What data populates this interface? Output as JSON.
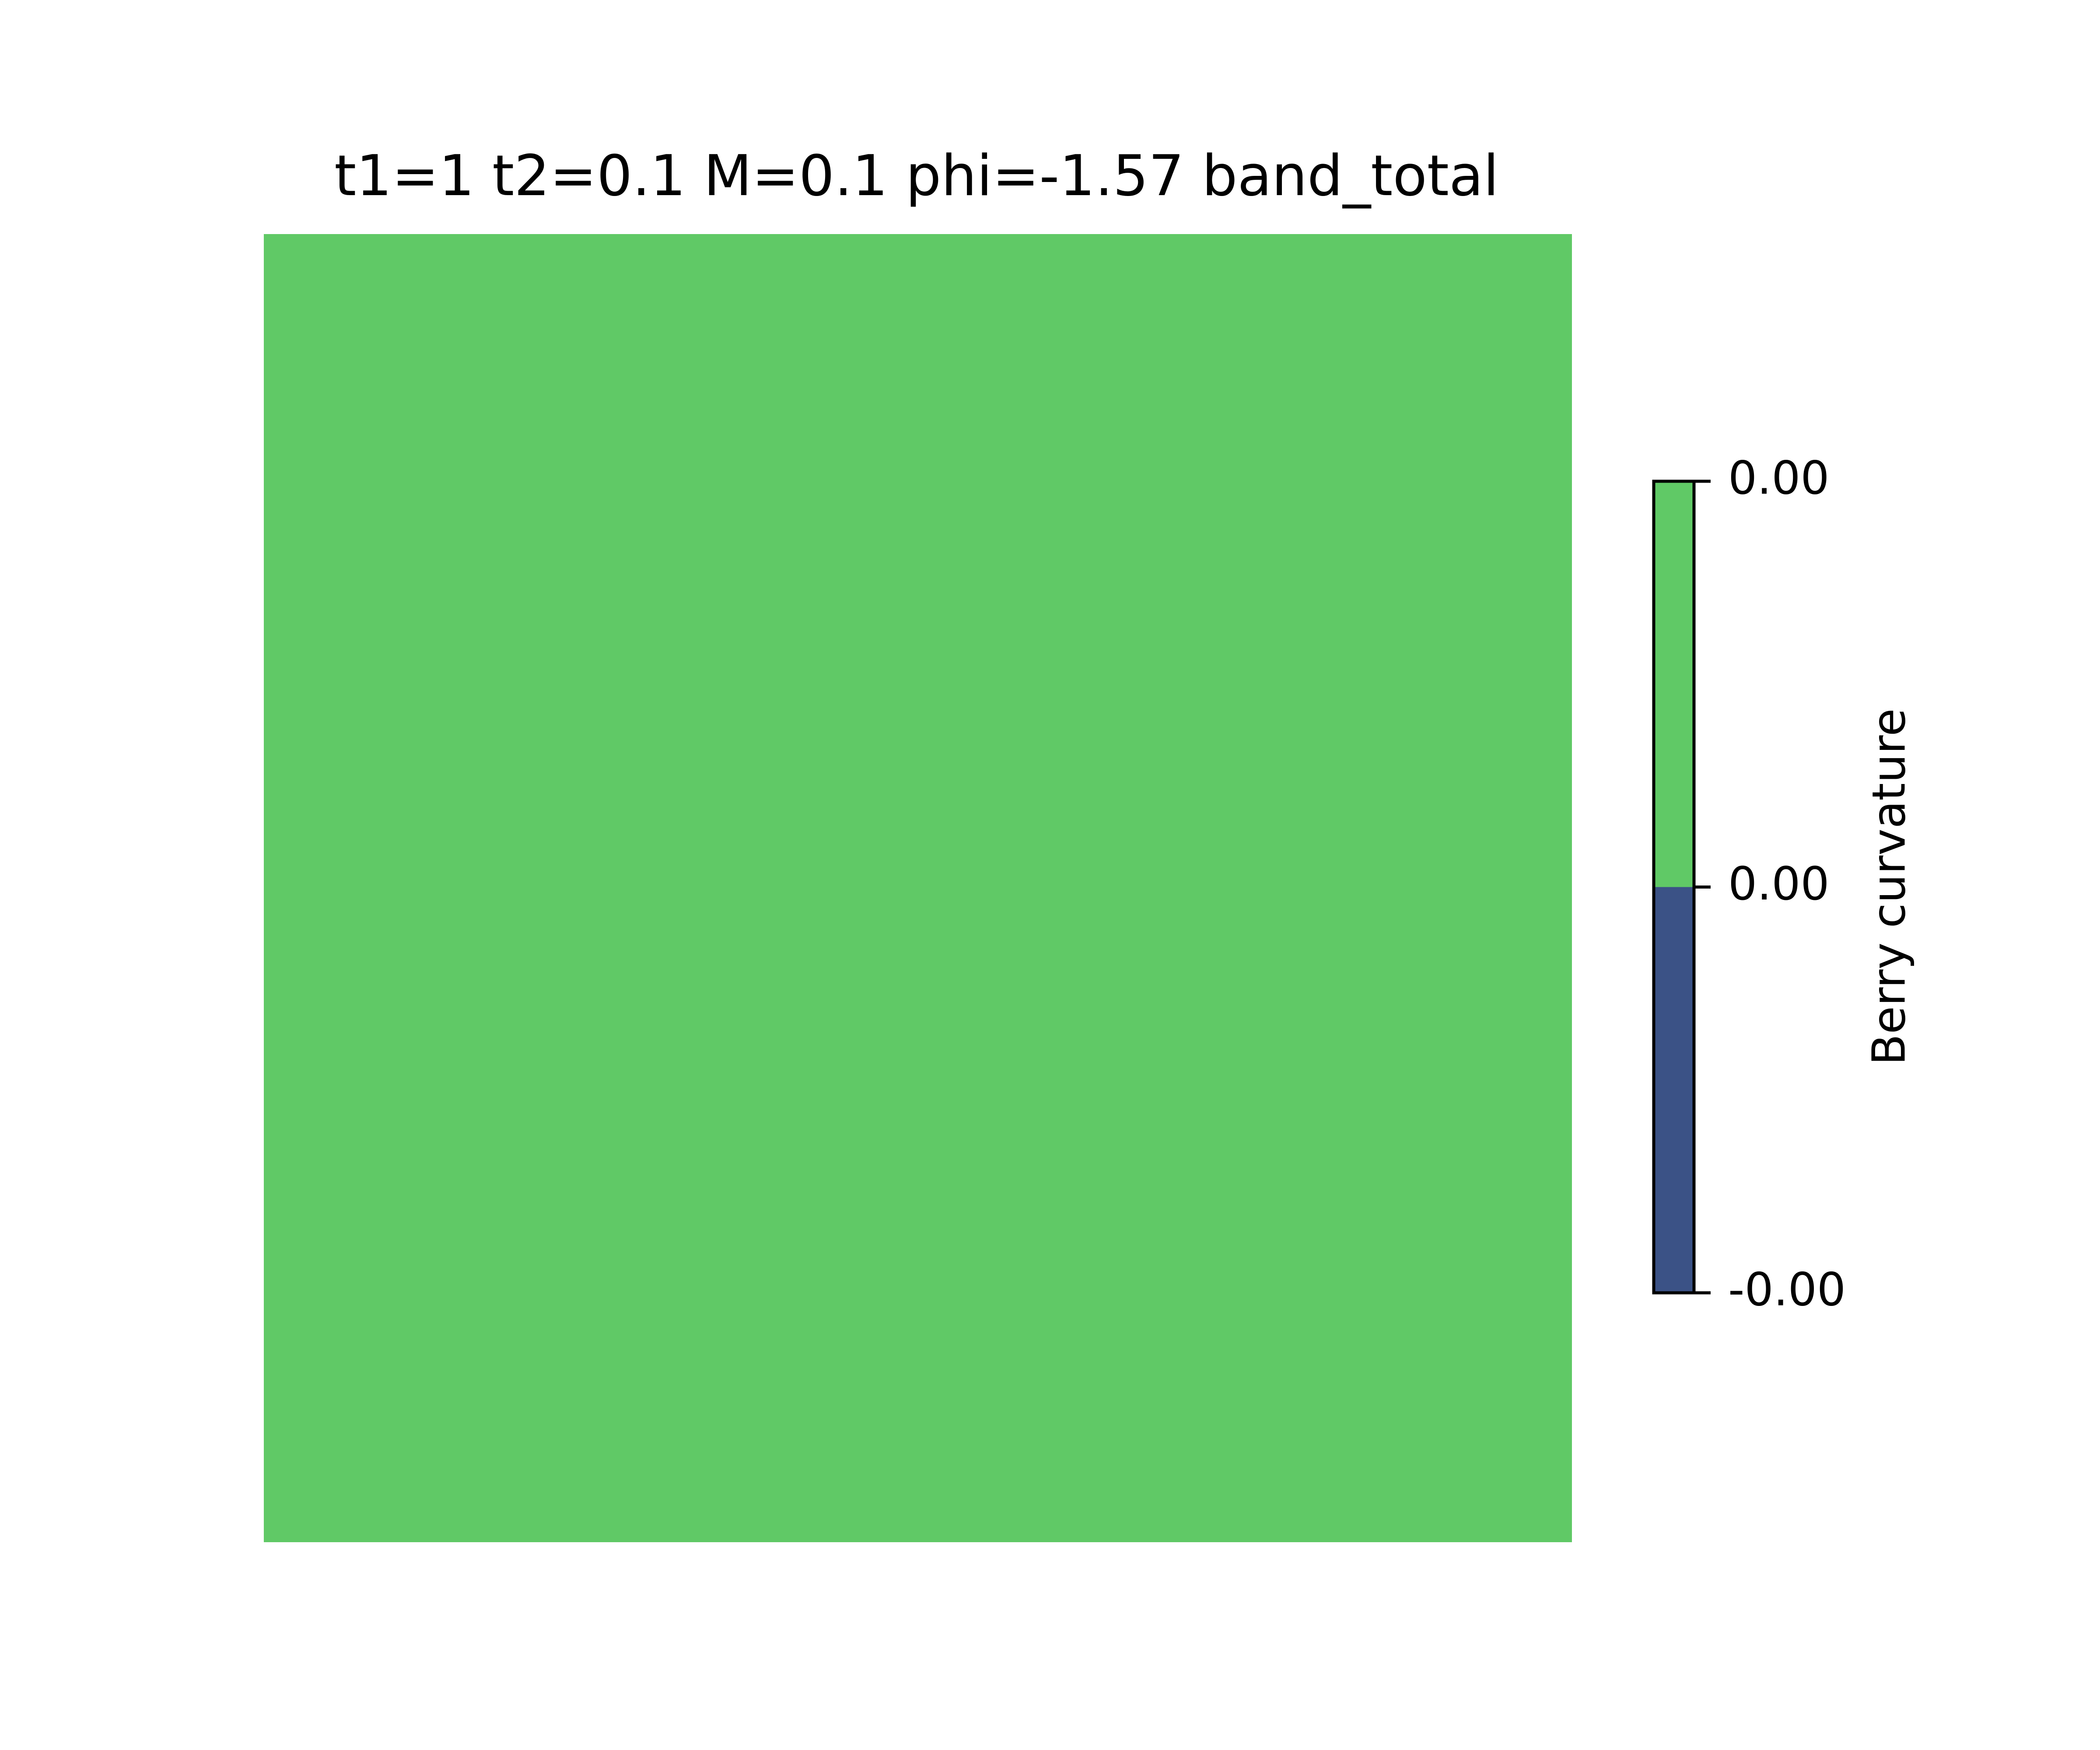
{
  "chart_data": {
    "type": "heatmap",
    "title": "t1=1 t2=0.1 M=0.1 phi=-1.57 band_total",
    "values": [
      [
        0.0
      ]
    ],
    "colors": {
      "heatmap_fill": "#60c966",
      "colorbar_upper": "#60c966",
      "colorbar_lower": "#3b5286",
      "outline": "#000000"
    },
    "colorbar": {
      "label": "Berry curvature",
      "ticks": [
        {
          "value": 2e-07,
          "label": "0.00"
        },
        {
          "value": 0.0,
          "label": "0.00"
        },
        {
          "value": -2e-07,
          "label": "-0.00"
        }
      ],
      "segments": [
        {
          "from": -2e-07,
          "to": 0.0,
          "color": "#3b5286"
        },
        {
          "from": 0.0,
          "to": 2e-07,
          "color": "#60c966"
        }
      ],
      "range": [
        -2e-07,
        2e-07
      ]
    },
    "axes_visible": false,
    "grid": false
  }
}
